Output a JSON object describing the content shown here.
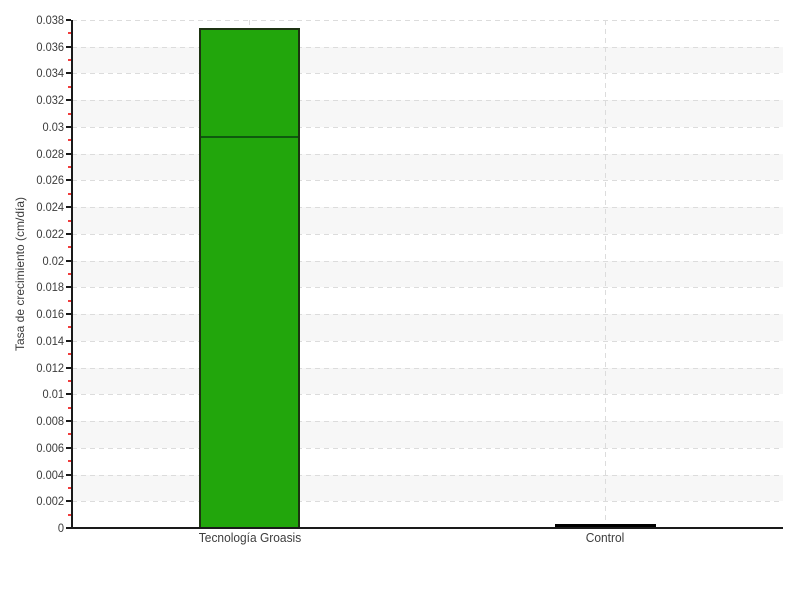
{
  "page": {
    "background": "#ffffff"
  },
  "chart_data": {
    "type": "bar",
    "title": "",
    "xlabel": "",
    "ylabel": "Tasa de crecimiento (cm/día)",
    "ylim": [
      0,
      0.038
    ],
    "ytick_step": 0.002,
    "minor_tick_step": 0.001,
    "yticks": [
      "0",
      "0.002",
      "0.004",
      "0.006",
      "0.008",
      "0.01",
      "0.012",
      "0.014",
      "0.016",
      "0.018",
      "0.02",
      "0.022",
      "0.024",
      "0.026",
      "0.028",
      "0.03",
      "0.032",
      "0.034",
      "0.036",
      "0.038"
    ],
    "categories": [
      "Tecnología Groasis",
      "Control"
    ],
    "bars": [
      {
        "category": "Tecnología Groasis",
        "total": 0.0374,
        "segments": [
          0.0293,
          0.0081
        ],
        "segment_divider": 0.0293,
        "fill": "#22a60c",
        "border": "#1d3311",
        "divider_color": "#0e5a0e"
      },
      {
        "category": "Control",
        "total": 0.0003,
        "segments": [
          0.0003
        ],
        "segment_divider": null,
        "fill": "#000000",
        "border": "#000000",
        "divider_color": null
      }
    ],
    "legend": null,
    "grid": {
      "horizontal": "dashed",
      "vertical_at_categories": "dashed",
      "color": "#dcdcdc"
    },
    "band_color": "#f7f7f7",
    "axis_color": "#1a1a1a",
    "tick_label_color": "#3d3d3d",
    "minor_tick_color": "#f03c3c"
  }
}
